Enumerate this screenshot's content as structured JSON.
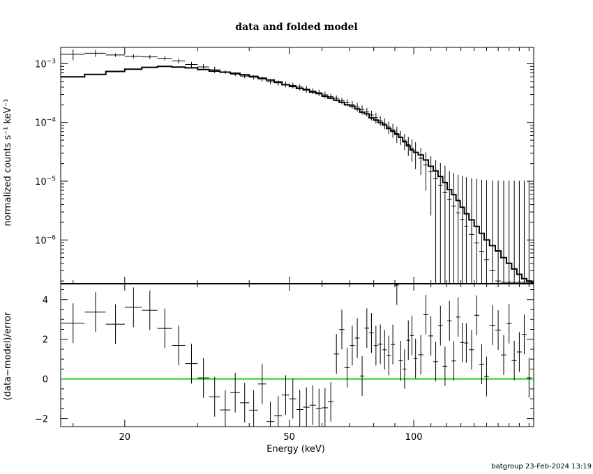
{
  "chart_data": [
    {
      "type": "line",
      "title": "data and folded model",
      "xlabel": "",
      "ylabel": "normalized counts s⁻¹ keV⁻¹",
      "xscale": "log",
      "yscale": "log",
      "xlim": [
        14,
        195
      ],
      "ylim": [
        1.8e-07,
        0.0019
      ],
      "y_tick_labels": [
        {
          "value": 0.001,
          "base": "10",
          "exp": "−3"
        },
        {
          "value": 0.0001,
          "base": "10",
          "exp": "−4"
        },
        {
          "value": 1e-05,
          "base": "10",
          "exp": "−5"
        },
        {
          "value": 1e-06,
          "base": "10",
          "exp": "−6"
        }
      ],
      "series": [
        {
          "role": "data",
          "x": [
            15.0,
            17.0,
            19.0,
            21.0,
            23.0,
            25.0,
            27.0,
            29.0,
            31.0,
            33.0,
            35.0,
            37.0,
            39.0,
            41.0,
            43.0,
            45.0,
            47.0,
            49.0,
            51.0,
            53.0,
            55.0,
            57.0,
            59.0,
            61.0,
            63.0,
            65.0,
            67.0,
            69.0,
            71.0,
            73.0,
            75.0,
            77.0,
            79.0,
            81.0,
            83.0,
            85.0,
            87.0,
            89.0,
            91.0,
            93.0,
            95.0,
            97.0,
            99.0,
            101.0,
            104.0,
            107.0,
            110.0,
            113.0,
            116.0,
            119.0,
            122.0,
            125.0,
            128.0,
            131.0,
            134.0,
            138.0,
            142.0,
            146.0,
            150.0,
            155.0,
            160.0,
            165.0,
            170.0,
            175.0,
            180.0,
            185.0,
            190.0
          ],
          "xerr": [
            1.0,
            1.0,
            1.0,
            1.0,
            1.0,
            1.0,
            1.0,
            1.0,
            1.0,
            1.0,
            1.0,
            1.0,
            1.0,
            1.0,
            1.0,
            1.0,
            1.0,
            1.0,
            1.0,
            1.0,
            1.0,
            1.0,
            1.0,
            1.0,
            1.0,
            1.0,
            1.0,
            1.0,
            1.0,
            1.0,
            1.0,
            1.0,
            1.0,
            1.0,
            1.0,
            1.0,
            1.0,
            1.0,
            1.0,
            1.0,
            1.0,
            1.0,
            1.0,
            1.0,
            1.5,
            1.5,
            1.5,
            1.5,
            1.5,
            1.5,
            1.5,
            1.5,
            1.5,
            1.5,
            1.5,
            2.0,
            2.0,
            2.0,
            2.0,
            2.5,
            2.5,
            2.5,
            2.5,
            2.5,
            2.5,
            2.5,
            2.5
          ],
          "y": [
            0.00145,
            0.00151,
            0.00141,
            0.00134,
            0.00131,
            0.00124,
            0.00112,
            0.000973,
            0.000884,
            0.000791,
            0.000726,
            0.000666,
            0.000617,
            0.000591,
            0.000552,
            0.000498,
            0.000474,
            0.000447,
            0.000429,
            0.000401,
            0.000371,
            0.000343,
            0.000321,
            0.000296,
            0.000275,
            0.000259,
            0.000234,
            0.000218,
            0.000202,
            0.000184,
            0.000166,
            0.000151,
            0.000134,
            0.000121,
            0.000108,
            9.69e-05,
            8.4e-05,
            7.5e-05,
            6.49e-05,
            5.65e-05,
            4.89e-05,
            4.19e-05,
            3.62e-05,
            3.11e-05,
            2.47e-05,
            1.89e-05,
            1.46e-05,
            1.11e-05,
            8.45e-06,
            6.41e-06,
            4.9e-06,
            3.76e-06,
            2.89e-06,
            2.23e-06,
            1.72e-06,
            1.24e-06,
            8.9e-07,
            6.4e-07,
            4.6e-07,
            3e-07,
            2e-07,
            1.9e-07,
            1.9e-07,
            1.9e-07,
            1.9e-07,
            1.9e-07,
            1.9e-07
          ],
          "yerr_lo": [
            0.0003,
            0.0002,
            0.0001,
            0.0001,
            0.0001,
            0.0001,
            0.0001,
            0.0001,
            0.0001,
            0.0001,
            5e-05,
            5e-05,
            5e-05,
            5e-05,
            5e-05,
            5e-05,
            5e-05,
            5e-05,
            5e-05,
            5e-05,
            5e-05,
            4e-05,
            4e-05,
            4e-05,
            3e-05,
            3e-05,
            3e-05,
            3e-05,
            3e-05,
            3e-05,
            3e-05,
            2.5e-05,
            2.5e-05,
            2.5e-05,
            2e-05,
            2e-05,
            2e-05,
            2e-05,
            2e-05,
            1.5e-05,
            1.5e-05,
            1.5e-05,
            1.5e-05,
            1.5e-05,
            1.2e-05,
            1.2e-05,
            1.2e-05,
            1.2e-05,
            1.2e-05,
            1.2e-05,
            1e-05,
            1e-05,
            1e-05,
            1e-05,
            1e-05,
            1e-05,
            1e-05,
            1e-05,
            1e-05,
            1e-05,
            1e-05,
            1e-05,
            1e-05,
            1e-05,
            1e-05,
            1e-05,
            1e-05
          ],
          "yerr_hi": [
            0.0003,
            0.0002,
            0.0001,
            0.0001,
            0.0001,
            0.0001,
            0.0001,
            0.0001,
            0.0001,
            0.0001,
            5e-05,
            5e-05,
            5e-05,
            5e-05,
            5e-05,
            5e-05,
            5e-05,
            5e-05,
            5e-05,
            5e-05,
            5e-05,
            4e-05,
            4e-05,
            4e-05,
            3e-05,
            3e-05,
            3e-05,
            3e-05,
            3e-05,
            3e-05,
            3e-05,
            2.5e-05,
            2.5e-05,
            2.5e-05,
            2e-05,
            2e-05,
            2e-05,
            2e-05,
            2e-05,
            1.5e-05,
            1.5e-05,
            1.5e-05,
            1.5e-05,
            1.5e-05,
            1.2e-05,
            1.2e-05,
            1.2e-05,
            1.2e-05,
            1.2e-05,
            1.2e-05,
            1e-05,
            1e-05,
            1e-05,
            1e-05,
            1e-05,
            1e-05,
            1e-05,
            1e-05,
            1e-05,
            1e-05,
            1e-05,
            1e-05,
            1e-05,
            1e-05,
            1e-05,
            1e-05,
            1e-05
          ]
        },
        {
          "role": "model",
          "x": [
            14.0,
            16.0,
            18.0,
            20.0,
            22.0,
            24.0,
            26.0,
            28.0,
            30.0,
            32.0,
            34.0,
            36.0,
            38.0,
            40.0,
            42.0,
            44.0,
            46.0,
            48.0,
            50.0,
            52.0,
            54.0,
            56.0,
            58.0,
            60.0,
            62.0,
            64.0,
            66.0,
            68.0,
            70.0,
            72.0,
            74.0,
            76.0,
            78.0,
            80.0,
            82.0,
            84.0,
            86.0,
            88.0,
            90.0,
            92.0,
            94.0,
            96.0,
            98.0,
            100.0,
            102.5,
            105.5,
            108.5,
            111.5,
            114.5,
            117.5,
            120.5,
            123.5,
            126.5,
            129.5,
            132.5,
            136.0,
            140.0,
            144.0,
            148.0,
            152.5,
            157.5,
            162.5,
            167.5,
            172.5,
            177.5,
            182.5,
            187.5,
            192.5,
            195.0
          ],
          "y": [
            0.0006,
            0.00066,
            0.00074,
            0.00081,
            0.00087,
            0.0009,
            0.00088,
            0.00085,
            0.0008,
            0.00075,
            0.00072,
            0.00069,
            0.00065,
            0.00061,
            0.00057,
            0.00053,
            0.00049,
            0.00044,
            0.00041,
            0.00038,
            0.00036,
            0.00033,
            0.00031,
            0.00028,
            0.00026,
            0.00024,
            0.00022,
            0.0002,
            0.00019,
            0.00017,
            0.00015,
            0.00014,
            0.00012,
            0.00011,
            0.0001,
            9.1e-05,
            7.9e-05,
            7.1e-05,
            6.3e-05,
            5.6e-05,
            4.7e-05,
            4e-05,
            3.4e-05,
            3.1e-05,
            2.8e-05,
            2.3e-05,
            1.8e-05,
            1.5e-05,
            1.2e-05,
            9.5e-06,
            7.2e-06,
            5.9e-06,
            4.7e-06,
            3.6e-06,
            2.8e-06,
            2.2e-06,
            1.7e-06,
            1.3e-06,
            1e-06,
            8e-07,
            6.5e-07,
            5e-07,
            4e-07,
            3.2e-07,
            2.6e-07,
            2.2e-07,
            2e-07,
            1.9e-07,
            1.9e-07
          ]
        }
      ],
      "grid": false
    },
    {
      "type": "scatter",
      "title": "",
      "xlabel": "Energy (keV)",
      "ylabel": "(data−model)/error",
      "xscale": "log",
      "xlim": [
        14,
        195
      ],
      "ylim": [
        -2.4,
        4.8
      ],
      "x_ticks": [
        20,
        50,
        100
      ],
      "x_tick_labels": [
        "20",
        "50",
        "100"
      ],
      "y_ticks": [
        -2,
        0,
        2,
        4
      ],
      "y_tick_labels": [
        "−2",
        "0",
        "2",
        "4"
      ],
      "reference_line": {
        "y": 0,
        "color": "#22cc22"
      },
      "series": [
        {
          "x": [
            15.0,
            17.0,
            19.0,
            21.0,
            23.0,
            25.0,
            27.0,
            29.0,
            31.0,
            33.0,
            35.0,
            37.0,
            39.0,
            41.0,
            43.0,
            45.0,
            47.0,
            49.0,
            51.0,
            53.0,
            55.0,
            57.0,
            59.0,
            61.0,
            63.0,
            65.0,
            67.0,
            69.0,
            71.0,
            73.0,
            75.0,
            77.0,
            79.0,
            81.0,
            83.0,
            85.0,
            87.0,
            89.0,
            91.0,
            93.0,
            95.0,
            97.0,
            99.0,
            101.0,
            104.0,
            107.0,
            110.0,
            113.0,
            116.0,
            119.0,
            122.0,
            125.0,
            128.0,
            131.0,
            134.0,
            138.0,
            142.0,
            146.0,
            150.0,
            155.0,
            160.0,
            165.0,
            170.0,
            175.0,
            180.0,
            185.0,
            190.0
          ],
          "xerr": [
            1.0,
            1.0,
            1.0,
            1.0,
            1.0,
            1.0,
            1.0,
            1.0,
            1.0,
            1.0,
            1.0,
            1.0,
            1.0,
            1.0,
            1.0,
            1.0,
            1.0,
            1.0,
            1.0,
            1.0,
            1.0,
            1.0,
            1.0,
            1.0,
            1.0,
            1.0,
            1.0,
            1.0,
            1.0,
            1.0,
            1.0,
            1.0,
            1.0,
            1.0,
            1.0,
            1.0,
            1.0,
            1.0,
            1.0,
            1.0,
            1.0,
            1.0,
            1.0,
            1.0,
            1.5,
            1.5,
            1.5,
            1.5,
            1.5,
            1.5,
            1.5,
            1.5,
            1.5,
            1.5,
            1.5,
            2.0,
            2.0,
            2.0,
            2.0,
            2.5,
            2.5,
            2.5,
            2.5,
            2.5,
            2.5,
            2.5,
            2.5
          ],
          "y": [
            2.81,
            3.37,
            2.76,
            3.61,
            3.46,
            2.55,
            1.69,
            0.773,
            0.0537,
            -0.9,
            -1.56,
            -0.687,
            -1.2,
            -1.57,
            -0.251,
            -2.14,
            -1.86,
            -0.81,
            -1.0,
            -1.54,
            -1.42,
            -1.32,
            -1.49,
            -1.45,
            -1.15,
            1.26,
            2.49,
            0.577,
            1.69,
            2.06,
            0.148,
            2.56,
            2.32,
            1.68,
            1.75,
            1.47,
            1.18,
            1.74,
            4.73,
            0.917,
            0.502,
            1.95,
            2.19,
            1.03,
            1.22,
            3.24,
            2.17,
            0.872,
            2.69,
            0.641,
            2.93,
            0.909,
            3.12,
            1.84,
            1.81,
            1.47,
            3.21,
            0.744,
            0.125,
            2.71,
            2.46,
            1.21,
            2.79,
            0.928,
            1.36,
            2.25,
            0.0582
          ],
          "yerr": [
            1.0,
            1.0,
            1.0,
            1.0,
            1.0,
            1.0,
            1.0,
            1.0,
            1.0,
            1.0,
            1.0,
            1.0,
            1.0,
            1.0,
            1.0,
            1.0,
            1.0,
            1.0,
            1.0,
            1.0,
            1.0,
            1.0,
            1.0,
            1.0,
            1.0,
            1.0,
            1.0,
            1.0,
            1.0,
            1.0,
            1.0,
            1.0,
            1.0,
            1.0,
            1.0,
            1.0,
            1.0,
            1.0,
            1.0,
            1.0,
            1.0,
            1.0,
            1.0,
            1.0,
            1.0,
            1.0,
            1.0,
            1.0,
            1.0,
            1.0,
            1.0,
            1.0,
            1.0,
            1.0,
            1.0,
            1.0,
            1.0,
            1.0,
            1.0,
            1.0,
            1.0,
            1.0,
            1.0,
            1.0,
            1.0,
            1.0,
            1.0
          ]
        }
      ],
      "grid": false
    }
  ],
  "footer": "batgroup 23-Feb-2024 13:19"
}
